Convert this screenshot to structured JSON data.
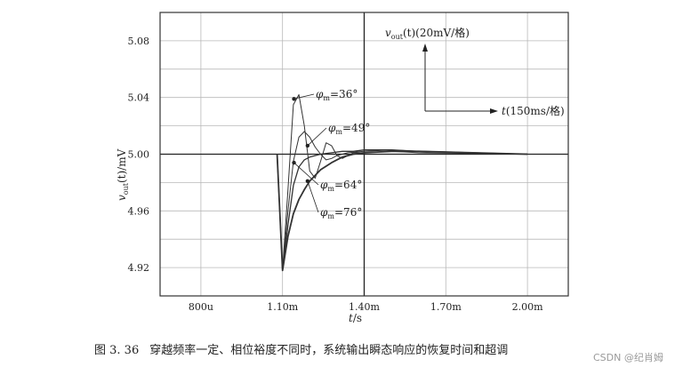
{
  "chart_data": {
    "type": "line",
    "xlabel_var": "t",
    "xlabel_unit": "/s",
    "ylabel_var": "v",
    "ylabel_sub": "out",
    "ylabel_rest": "(t)/mV",
    "xlim": [
      0.00065,
      0.00215
    ],
    "ylim": [
      4.9,
      5.1
    ],
    "x_ticks": [
      {
        "value": 0.0008,
        "label": "800u"
      },
      {
        "value": 0.0011,
        "label": "1.10m"
      },
      {
        "value": 0.0014,
        "label": "1.40m"
      },
      {
        "value": 0.0017,
        "label": "1.70m"
      },
      {
        "value": 0.002,
        "label": "2.00m"
      }
    ],
    "y_ticks": [
      {
        "value": 4.92,
        "label": "4.92"
      },
      {
        "value": 4.96,
        "label": "4.96"
      },
      {
        "value": 5.0,
        "label": "5.00"
      },
      {
        "value": 5.04,
        "label": "5.04"
      },
      {
        "value": 5.08,
        "label": "5.08"
      }
    ],
    "grid": true,
    "series": [
      {
        "name": "φm=36°",
        "text_main": "φ",
        "text_sub": "m",
        "text_tail": "=36°",
        "x": [
          0.00108,
          0.0011,
          0.00112,
          0.00114,
          0.00116,
          0.00118,
          0.0012,
          0.00122,
          0.00124,
          0.00126,
          0.00128,
          0.0013,
          0.00132,
          0.00134,
          0.00136,
          0.0014,
          0.0015,
          0.0016,
          0.002
        ],
        "y": [
          5.0,
          4.918,
          4.975,
          5.035,
          5.042,
          5.02,
          4.988,
          4.983,
          4.995,
          5.008,
          5.006,
          4.999,
          4.997,
          4.999,
          5.001,
          5.001,
          5.002,
          5.001,
          5.0
        ]
      },
      {
        "name": "φm=49°",
        "text_main": "φ",
        "text_sub": "m",
        "text_tail": "=49°",
        "x": [
          0.00108,
          0.0011,
          0.00112,
          0.00114,
          0.00116,
          0.00118,
          0.0012,
          0.00122,
          0.00124,
          0.00126,
          0.00128,
          0.0013,
          0.00134,
          0.0014,
          0.0015,
          0.0016,
          0.002
        ],
        "y": [
          5.0,
          4.918,
          4.96,
          4.995,
          5.012,
          5.016,
          5.012,
          5.005,
          5.0,
          4.996,
          4.997,
          4.999,
          5.001,
          5.002,
          5.003,
          5.002,
          5.0
        ]
      },
      {
        "name": "φm=64°",
        "text_main": "φ",
        "text_sub": "m",
        "text_tail": "=64°",
        "x": [
          0.00108,
          0.0011,
          0.00112,
          0.00114,
          0.00116,
          0.00118,
          0.0012,
          0.00124,
          0.00128,
          0.00132,
          0.00136,
          0.0014,
          0.0015,
          0.0016,
          0.002
        ],
        "y": [
          5.0,
          4.918,
          4.95,
          4.978,
          4.991,
          4.996,
          4.998,
          5.0,
          5.001,
          5.002,
          5.002,
          5.003,
          5.003,
          5.002,
          5.0
        ]
      },
      {
        "name": "φm=76°",
        "text_main": "φ",
        "text_sub": "m",
        "text_tail": "=76°",
        "x": [
          0.00108,
          0.0011,
          0.00112,
          0.00114,
          0.00116,
          0.00118,
          0.0012,
          0.00124,
          0.00128,
          0.00132,
          0.00136,
          0.0014,
          0.0015,
          0.0016,
          0.002
        ],
        "y": [
          5.0,
          4.918,
          4.942,
          4.958,
          4.968,
          4.975,
          4.981,
          4.989,
          4.994,
          4.998,
          5.0,
          5.001,
          5.002,
          5.002,
          5.0
        ]
      }
    ],
    "scale_annotation": {
      "v_var": "v",
      "v_sub": "out",
      "v_rest": "(t)(20mV/格)",
      "t_var": "t",
      "t_rest": "(150ms/格)"
    }
  },
  "caption": {
    "number": "图 3. 36",
    "text": "穿越频率一定、相位裕度不同时，系统输出瞬态响应的恢复时间和超调"
  },
  "watermark": "CSDN @纪肖姆"
}
